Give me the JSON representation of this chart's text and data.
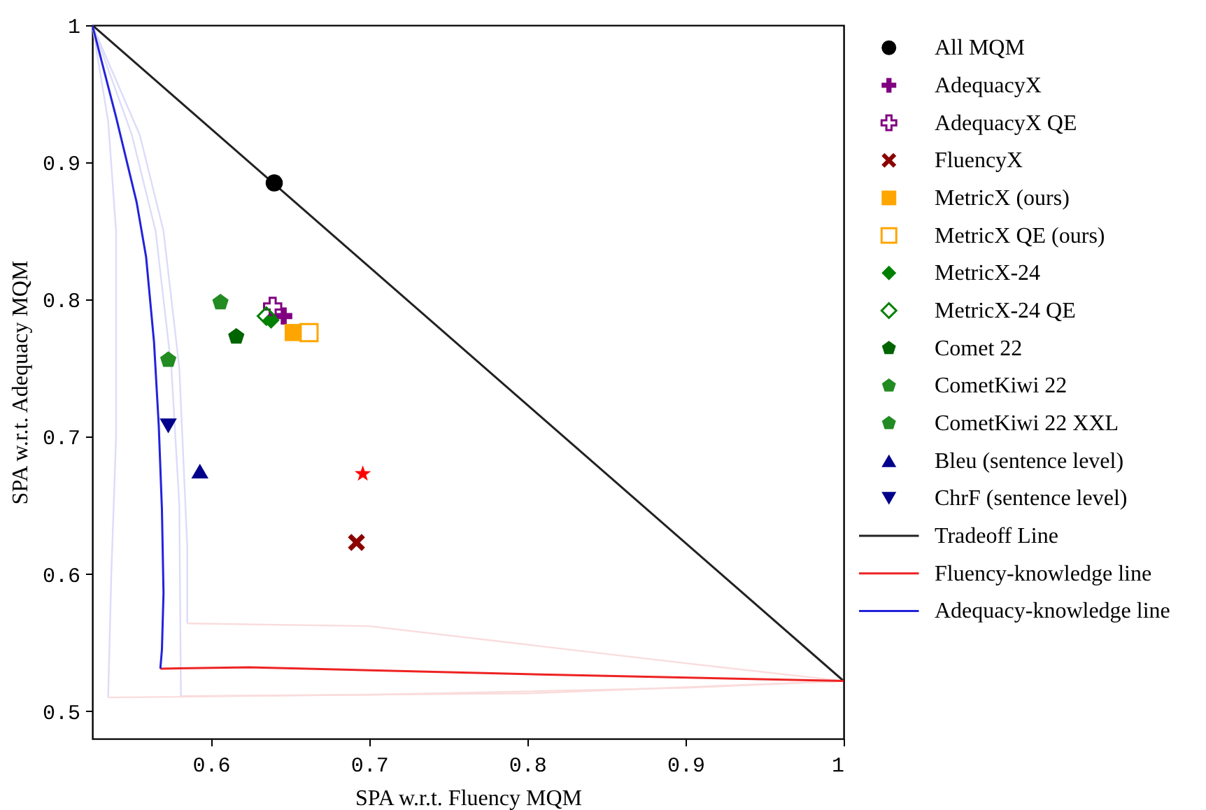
{
  "chart_data": {
    "type": "scatter",
    "xlabel": "SPA w.r.t. Fluency MQM",
    "ylabel": "SPA w.r.t. Adequacy MQM",
    "xlim": [
      0.525,
      1.0
    ],
    "ylim": [
      0.48,
      1.0
    ],
    "xticks": [
      0.6,
      0.7,
      0.8,
      0.9,
      1
    ],
    "yticks": [
      0.5,
      0.6,
      0.7,
      0.8,
      0.9,
      1
    ],
    "grid": false,
    "legend": "right",
    "series": [
      {
        "name": "All MQM",
        "color": "#000000",
        "marker": "circle",
        "x": [
          0.64
        ],
        "values": [
          0.885
        ]
      },
      {
        "name": "AdequacyX",
        "color": "#800080",
        "marker": "cross",
        "x": [
          0.646
        ],
        "values": [
          0.788
        ]
      },
      {
        "name": "AdequacyX QE",
        "color": "#800080",
        "marker": "cross-open",
        "x": [
          0.639
        ],
        "values": [
          0.795
        ]
      },
      {
        "name": "FluencyX",
        "color": "#8b0000",
        "marker": "x",
        "x": [
          0.692
        ],
        "values": [
          0.623
        ]
      },
      {
        "name": "MetricX (ours)",
        "color": "#ffa500",
        "marker": "square",
        "x": [
          0.652
        ],
        "values": [
          0.776
        ]
      },
      {
        "name": "MetricX QE (ours)",
        "color": "#ffa500",
        "marker": "square-open",
        "x": [
          0.662
        ],
        "values": [
          0.776
        ]
      },
      {
        "name": "MetricX-24",
        "color": "#008000",
        "marker": "diamond",
        "x": [
          0.638
        ],
        "values": [
          0.785
        ]
      },
      {
        "name": "MetricX-24 QE",
        "color": "#008000",
        "marker": "diamond-open",
        "x": [
          0.635
        ],
        "values": [
          0.788
        ]
      },
      {
        "name": "Comet 22",
        "color": "#006400",
        "x": [
          0.616
        ],
        "values": [
          0.773
        ]
      },
      {
        "name": "CometKiwi 22",
        "color": "#228b22",
        "x": [
          0.573
        ],
        "values": [
          0.756
        ]
      },
      {
        "name": "CometKiwi 22 XXL",
        "color": "#228b22",
        "x": [
          0.606
        ],
        "values": [
          0.798
        ]
      },
      {
        "color": "#ff0000",
        "marker": "star",
        "x": [
          0.696
        ],
        "values": [
          0.673
        ]
      },
      {
        "name": "Bleu (sentence level)",
        "color": "#00008b",
        "marker": "triangle",
        "x": [
          0.593
        ],
        "values": [
          0.675
        ]
      },
      {
        "name": "ChrF (sentence level)",
        "color": "#00008b",
        "marker": "triangle-down",
        "x": [
          0.573
        ],
        "values": [
          0.708
        ]
      },
      {
        "name": "Tradeoff Line",
        "type": "line",
        "color": "#222222",
        "line_style": "solid",
        "x": [
          0.525,
          1.0
        ],
        "values": [
          1.0,
          0.522
        ]
      },
      {
        "name": "Fluency-knowledge line",
        "type": "line",
        "color": "#ee2222",
        "line_style": "solid",
        "x": [
          0.568,
          0.624,
          0.8,
          1.0
        ],
        "values": [
          0.531,
          0.532,
          0.527,
          0.522
        ]
      },
      {
        "name": "Adequacy-knowledge line",
        "type": "line",
        "color": "#2222dd",
        "line_style": "solid",
        "x": [
          0.525,
          0.54,
          0.553,
          0.559,
          0.564,
          0.567,
          0.569,
          0.57,
          0.569,
          0.568
        ],
        "values": [
          1.0,
          0.933,
          0.871,
          0.831,
          0.769,
          0.708,
          0.647,
          0.586,
          0.545,
          0.531
        ]
      },
      {
        "type": "line",
        "color": "#dcdcfa",
        "x": [
          0.525,
          0.535,
          0.54,
          0.54,
          0.537,
          0.535
        ],
        "values": [
          1.0,
          0.93,
          0.85,
          0.7,
          0.6,
          0.51
        ]
      },
      {
        "type": "line",
        "color": "#dcdcfa",
        "x": [
          0.525,
          0.55,
          0.565,
          0.575,
          0.58,
          0.581
        ],
        "values": [
          1.0,
          0.92,
          0.85,
          0.75,
          0.65,
          0.511
        ]
      },
      {
        "type": "line",
        "color": "#dcdcfa",
        "x": [
          0.525,
          0.555,
          0.57,
          0.58,
          0.585,
          0.585
        ],
        "values": [
          1.0,
          0.92,
          0.85,
          0.75,
          0.62,
          0.564
        ]
      },
      {
        "type": "line",
        "color": "#fadcdc",
        "x": [
          0.535,
          0.7,
          0.9,
          1.0
        ],
        "values": [
          0.51,
          0.512,
          0.517,
          0.522
        ]
      },
      {
        "type": "line",
        "color": "#fadcdc",
        "x": [
          0.581,
          0.8,
          1.0
        ],
        "values": [
          0.511,
          0.513,
          0.522
        ]
      },
      {
        "type": "line",
        "color": "#fadcdc",
        "x": [
          0.585,
          0.7,
          0.9,
          1.0
        ],
        "values": [
          0.564,
          0.562,
          0.535,
          0.522
        ]
      }
    ]
  }
}
